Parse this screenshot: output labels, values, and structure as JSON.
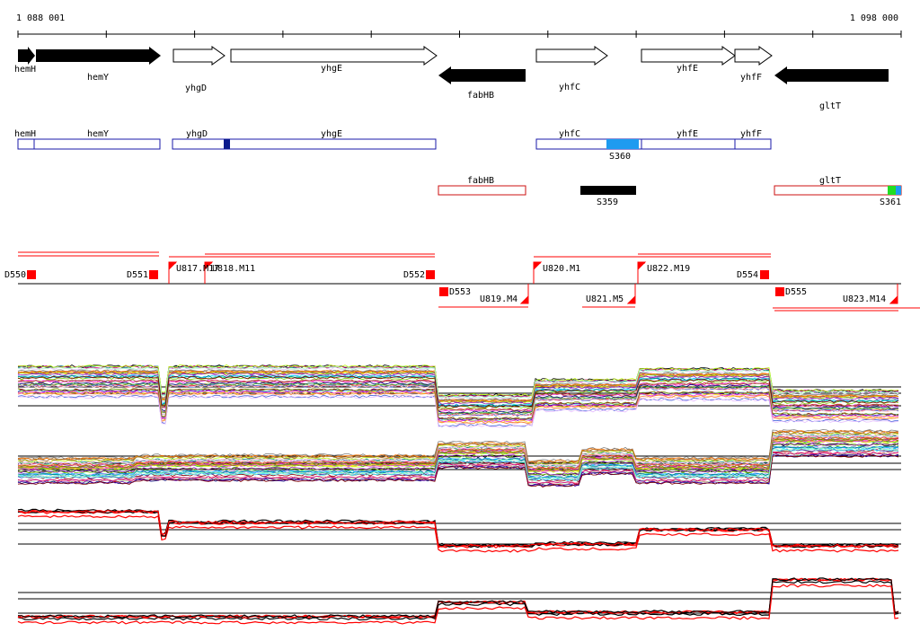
{
  "coords": {
    "start": "1 088 001",
    "end": "1 098 000"
  },
  "genes": [
    {
      "name": "hemH",
      "strand": "+",
      "color": "black"
    },
    {
      "name": "hemY",
      "strand": "+",
      "color": "black"
    },
    {
      "name": "yhgD",
      "strand": "+",
      "color": "white"
    },
    {
      "name": "yhgE",
      "strand": "+",
      "color": "white"
    },
    {
      "name": "fabHB",
      "strand": "-",
      "color": "black"
    },
    {
      "name": "yhfC",
      "strand": "+",
      "color": "white"
    },
    {
      "name": "yhfE",
      "strand": "+",
      "color": "white"
    },
    {
      "name": "yhfF",
      "strand": "+",
      "color": "white"
    },
    {
      "name": "gltT",
      "strand": "-",
      "color": "black"
    }
  ],
  "operons_plus": [
    "hemH",
    "hemY",
    "yhgD",
    "yhgE",
    "yhfC",
    "yhfE",
    "yhfF"
  ],
  "operons_minus": [
    "fabHB",
    "gltT"
  ],
  "segments": [
    "S360",
    "S359",
    "S361"
  ],
  "segment_colors": {
    "S360": "#1e9bf0",
    "S359": "#000000",
    "S361_a": "#22dd22",
    "S361_b": "#1e9bf0",
    "yhgD_mark": "#0a1a8c"
  },
  "down_labels": [
    "D550",
    "D551",
    "D552",
    "D553",
    "D554",
    "D555"
  ],
  "up_labels": [
    "U817.M17",
    "U818.M11",
    "U819.M4",
    "U820.M1",
    "U821.M5",
    "U822.M19",
    "U823.M14"
  ],
  "colors": {
    "plus_box": "#1a1aa8",
    "minus_box": "#cc1111",
    "red": "#ff0000"
  }
}
